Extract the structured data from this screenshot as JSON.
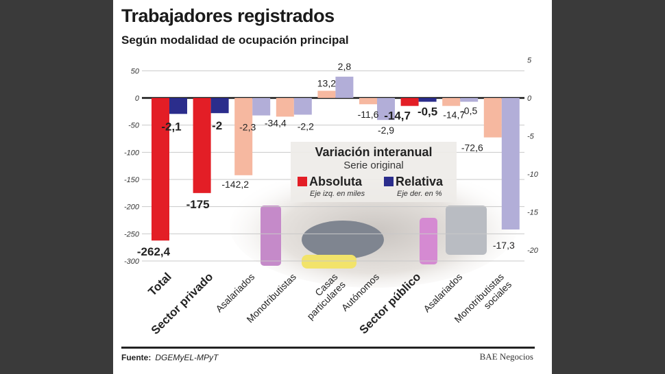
{
  "title": "Trabajadores registrados",
  "subtitle": "Según modalidad de ocupación principal",
  "legend": {
    "title": "Variación interanual",
    "subtitle": "Serie original",
    "absolute_label": "Absoluta",
    "absolute_note": "Eje izq. en miles",
    "relative_label": "Relativa",
    "relative_note": "Eje der. en %"
  },
  "footer": {
    "source_label": "Fuente:",
    "source": "DGEMyEL-MPyT",
    "brand": "BAE Negocios"
  },
  "chart_data": {
    "type": "bar",
    "categories": [
      "Total",
      "Sector privado",
      "Asalariados",
      "Monotributistas",
      "Casas particulares",
      "Autónomos",
      "Sector público",
      "Asalariados",
      "Monotributistas sociales"
    ],
    "bold_categories": [
      true,
      true,
      false,
      false,
      false,
      false,
      true,
      false,
      false
    ],
    "series": [
      {
        "name": "Absoluta",
        "axis": "left",
        "values": [
          -262.4,
          -175,
          -142.2,
          -34.4,
          13.2,
          -11.6,
          -14.7,
          -14.7,
          -72.6
        ],
        "value_labels": [
          "-262,4",
          "-175",
          "-142,2",
          "-34,4",
          "13,2",
          "-11,6",
          "-14,7",
          "-14,7",
          "-72,6"
        ]
      },
      {
        "name": "Relativa",
        "axis": "right",
        "values": [
          -2.1,
          -2,
          -2.3,
          -2.2,
          2.8,
          -2.9,
          -0.5,
          -0.5,
          -17.3
        ],
        "value_labels": [
          "-2,1",
          "-2",
          "-2,3",
          "-2,2",
          "2,8",
          "-2,9",
          "-0,5",
          "-0,5",
          "-17,3"
        ]
      }
    ],
    "left_axis": {
      "ylim": [
        -300,
        50
      ],
      "ticks": [
        "50",
        "0",
        "-50",
        "-100",
        "-150",
        "-200",
        "-250",
        "-300"
      ],
      "tick_values": [
        50,
        0,
        -50,
        -100,
        -150,
        -200,
        -250,
        -300
      ]
    },
    "right_axis": {
      "ylim": [
        -20,
        5
      ],
      "ticks": [
        "5",
        "0",
        "-5",
        "-10",
        "-15",
        "-20"
      ],
      "tick_values": [
        5,
        0,
        -5,
        -10,
        -15,
        -20
      ]
    },
    "grid": true,
    "colors": {
      "absolute_main": "#e31e26",
      "relative_main": "#2b2d8c",
      "absolute_sub": "#f6b8a0",
      "relative_sub": "#b2aed8"
    }
  }
}
